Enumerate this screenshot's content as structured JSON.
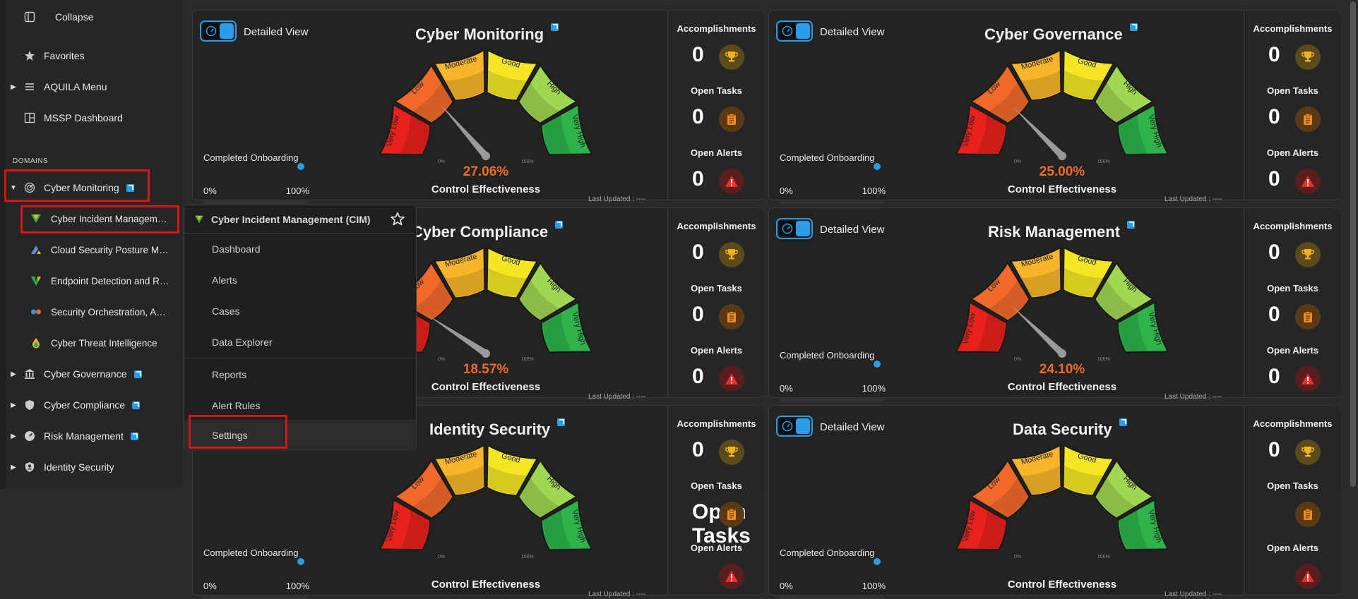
{
  "sidebar": {
    "collapse_label": "Collapse",
    "favorites_label": "Favorites",
    "aquila_menu_label": "AQUILA Menu",
    "mssp_dashboard_label": "MSSP Dashboard",
    "domains_label": "DOMAINS",
    "cyber_monitoring_label": "Cyber Monitoring",
    "sub_items": [
      "Cyber Incident Management (CIM)",
      "Cloud Security Posture Management",
      "Endpoint Detection and Response",
      "Security Orchestration, Automation",
      "Cyber Threat Intelligence"
    ],
    "cyber_governance_label": "Cyber Governance",
    "cyber_compliance_label": "Cyber Compliance",
    "risk_management_label": "Risk Management",
    "identity_security_label": "Identity Security"
  },
  "popup": {
    "title": "Cyber Incident Management (CIM)",
    "items": [
      "Dashboard",
      "Alerts",
      "Cases",
      "Data Explorer",
      "Reports",
      "Alert Rules",
      "Settings"
    ]
  },
  "common": {
    "detailed_view": "Detailed View",
    "accomplishments": "Accomplishments",
    "open_tasks": "Open Tasks",
    "open_alerts": "Open Alerts",
    "control_effectiveness": "Control Effectiveness",
    "last_updated": "Last Updated : ----",
    "completed_onboarding": "Completed Onboarding",
    "progress_min": "0%",
    "progress_max": "100%",
    "onboarding_progress": 0,
    "gauge_labels": [
      "Very Low",
      "Low",
      "Moderate",
      "Good",
      "High",
      "Very High"
    ],
    "gauge_min": "0%",
    "gauge_max": "100%"
  },
  "cards": [
    {
      "title": "Cyber Monitoring",
      "percent": "27.06%",
      "value": 27.06,
      "accomplishments": "0",
      "open_tasks": "0",
      "open_alerts": "0"
    },
    {
      "title": "Cyber Governance",
      "percent": "25.00%",
      "value": 25.0,
      "accomplishments": "0",
      "open_tasks": "0",
      "open_alerts": "0"
    },
    {
      "title": "Cyber Compliance",
      "percent": "18.57%",
      "value": 18.57,
      "accomplishments": "0",
      "open_tasks": "0",
      "open_alerts": "0"
    },
    {
      "title": "Risk Management",
      "percent": "24.10%",
      "value": 24.1,
      "accomplishments": "0",
      "open_tasks": "0",
      "open_alerts": "0"
    },
    {
      "title": "Identity Security",
      "accomplishments": "0",
      "open_tasks": "Open Tasks"
    },
    {
      "title": "Data Security",
      "accomplishments": "0"
    }
  ],
  "colors": {
    "accent": "#2a9de8",
    "highlight": "#d4161b",
    "percent": "#f06a2a",
    "gauge": [
      "#e8211c",
      "#f26a2b",
      "#f7b52a",
      "#f4e625",
      "#9fd652",
      "#2db34a"
    ]
  }
}
